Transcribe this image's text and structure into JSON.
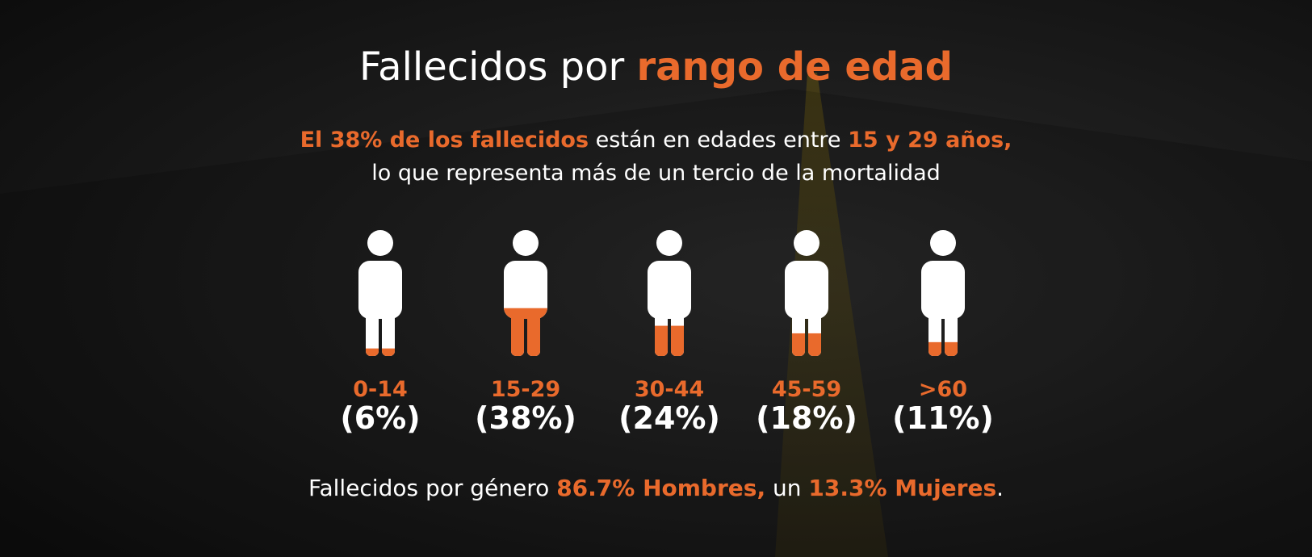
{
  "accent_color": "#e96a2c",
  "header": {
    "title": [
      {
        "text": "Fallecidos por ",
        "highlight": false
      },
      {
        "text": "rango de edad",
        "highlight": true
      }
    ]
  },
  "subtitle": {
    "lines": [
      [
        {
          "text": "El 38% de los fallecidos",
          "highlight": true
        },
        {
          "text": " están en edades entre ",
          "highlight": false
        },
        {
          "text": "15 y 29 años,",
          "highlight": true
        }
      ],
      [
        {
          "text": "lo que representa más de un tercio de la mortalidad",
          "highlight": false
        }
      ]
    ]
  },
  "groups": [
    {
      "range": "0-14",
      "value": 6,
      "label": "(6%)"
    },
    {
      "range": "15-29",
      "value": 38,
      "label": "(38%)"
    },
    {
      "range": "30-44",
      "value": 24,
      "label": "(24%)"
    },
    {
      "range": "45-59",
      "value": 18,
      "label": "(18%)"
    },
    {
      "range": ">60",
      "value": 11,
      "label": "(11%)"
    }
  ],
  "footer": [
    {
      "text": "Fallecidos por género ",
      "highlight": false
    },
    {
      "text": "86.7% Hombres,",
      "highlight": true
    },
    {
      "text": " un ",
      "highlight": false
    },
    {
      "text": "13.3% Mujeres",
      "highlight": true
    },
    {
      "text": ".",
      "highlight": false
    }
  ]
}
